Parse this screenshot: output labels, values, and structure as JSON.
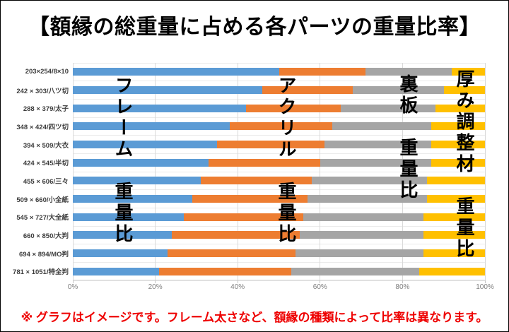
{
  "page": {
    "title": "【額縁の総重量に占める各パーツの重量比率】",
    "note": "※ グラフはイメージです。フレーム太さなど、額縁の種類によって比率は異なります。"
  },
  "chart_data": {
    "type": "bar",
    "orientation": "horizontal",
    "stacked": true,
    "stacked_total_percent": 100,
    "title": "【額縁の総重量に占める各パーツの重量比率】",
    "categories": [
      "203×254/8×10",
      "242 × 303/八ツ切",
      "288 × 379/太子",
      "348 × 424/四ツ切",
      "394 × 509/大衣",
      "424 × 545/半切",
      "455 × 606/三々",
      "509 × 660/小全紙",
      "545 × 727/大全紙",
      "660 × 850/大判",
      "694 × 894/MO判",
      "781 × 1051/特全判"
    ],
    "series": [
      {
        "name": "フレーム重量比",
        "color": "#5B9BD5",
        "values": [
          50,
          46,
          42,
          38,
          35,
          33,
          31,
          29,
          27,
          24,
          23,
          21
        ]
      },
      {
        "name": "アクリル重量比",
        "color": "#ED7D31",
        "values": [
          21,
          22,
          23,
          25,
          26,
          27,
          27,
          28,
          29,
          31,
          31,
          32
        ]
      },
      {
        "name": "裏板重量比",
        "color": "#A5A5A5",
        "values": [
          21,
          22,
          23,
          24,
          26,
          27,
          28,
          29,
          29,
          30,
          31,
          31
        ]
      },
      {
        "name": "厚み調整材重量比",
        "color": "#FFC000",
        "values": [
          8,
          10,
          12,
          13,
          13,
          13,
          14,
          14,
          15,
          15,
          15,
          16
        ]
      }
    ],
    "x_ticks": [
      "0%",
      "20%",
      "40%",
      "60%",
      "80%",
      "100%"
    ],
    "xlim": [
      0,
      100
    ],
    "grid": "vertical-major-and-category-separators",
    "legend": "none",
    "overlay_labels": [
      {
        "text": "フレーム　重量比",
        "series": "フレーム重量比"
      },
      {
        "text": "アクリル　重量比",
        "series": "アクリル重量比"
      },
      {
        "text": "裏板　重量比",
        "series": "裏板重量比"
      },
      {
        "text": "厚み調整材　重量比",
        "series": "厚み調整材重量比"
      }
    ],
    "note": "※ グラフはイメージです。フレーム太さなど、額縁の種類によって比率は異なります。"
  },
  "colors": {
    "frame_blue": "#5B9BD5",
    "acrylic_orange": "#ED7D31",
    "backboard_gray": "#A5A5A5",
    "spacer_yellow": "#FFC000",
    "note_red": "#ee0000",
    "gridline": "#d9d9d9",
    "axis_text": "#7f7f7f",
    "category_text": "#3d3d3d"
  }
}
